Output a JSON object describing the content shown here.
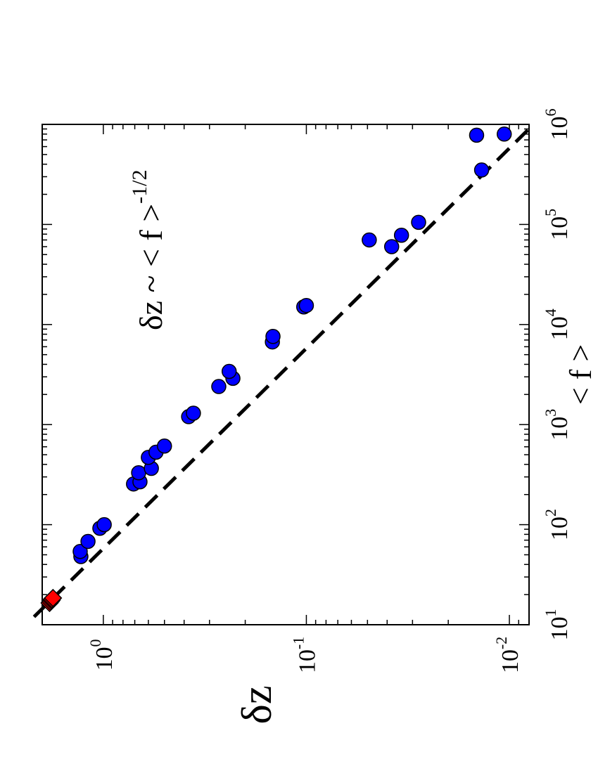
{
  "chart_data": {
    "type": "scatter",
    "orientation": "rotated-90-clockwise",
    "xlabel": "< f >",
    "ylabel": "δz",
    "annotation": {
      "text": "δz ~ < f >",
      "exponent": "-1/2"
    },
    "x_scale": "log",
    "y_scale": "log",
    "xlim": [
      10,
      1000000
    ],
    "ylim": [
      0.008,
      2.0
    ],
    "x_ticks": [
      {
        "base": "10",
        "exp": "1",
        "value": 10
      },
      {
        "base": "10",
        "exp": "2",
        "value": 100
      },
      {
        "base": "10",
        "exp": "3",
        "value": 1000
      },
      {
        "base": "10",
        "exp": "4",
        "value": 10000
      },
      {
        "base": "10",
        "exp": "5",
        "value": 100000
      },
      {
        "base": "10",
        "exp": "6",
        "value": 1000000
      }
    ],
    "y_ticks": [
      {
        "base": "10",
        "exp": "0",
        "value": 1
      },
      {
        "base": "10",
        "exp": "-1",
        "value": 0.1
      },
      {
        "base": "10",
        "exp": "-2",
        "value": 0.01
      }
    ],
    "fit_line": {
      "style": "dashed",
      "color": "#000000",
      "exponent": -0.5,
      "coefficient": 7.6,
      "x_range": [
        12,
        900000
      ]
    },
    "series": [
      {
        "marker": "square",
        "color": "#ff0000",
        "points": [
          {
            "x": 16.5,
            "y": 1.84
          },
          {
            "x": 17.0,
            "y": 1.82
          },
          {
            "x": 17.5,
            "y": 1.8
          },
          {
            "x": 18.0,
            "y": 1.79
          },
          {
            "x": 18.5,
            "y": 1.77
          }
        ]
      },
      {
        "marker": "circle",
        "color": "#0000ff",
        "points": [
          {
            "x": 48,
            "y": 1.29
          },
          {
            "x": 54,
            "y": 1.3
          },
          {
            "x": 68,
            "y": 1.19
          },
          {
            "x": 92,
            "y": 1.04
          },
          {
            "x": 100,
            "y": 0.99
          },
          {
            "x": 255,
            "y": 0.71
          },
          {
            "x": 268,
            "y": 0.66
          },
          {
            "x": 330,
            "y": 0.67
          },
          {
            "x": 365,
            "y": 0.58
          },
          {
            "x": 470,
            "y": 0.6
          },
          {
            "x": 530,
            "y": 0.55
          },
          {
            "x": 610,
            "y": 0.5
          },
          {
            "x": 1200,
            "y": 0.38
          },
          {
            "x": 1300,
            "y": 0.36
          },
          {
            "x": 2400,
            "y": 0.27
          },
          {
            "x": 2900,
            "y": 0.23
          },
          {
            "x": 3400,
            "y": 0.24
          },
          {
            "x": 6700,
            "y": 0.147
          },
          {
            "x": 7600,
            "y": 0.146
          },
          {
            "x": 15000,
            "y": 0.103
          },
          {
            "x": 15500,
            "y": 0.1
          },
          {
            "x": 60000,
            "y": 0.038
          },
          {
            "x": 70000,
            "y": 0.049
          },
          {
            "x": 78000,
            "y": 0.034
          },
          {
            "x": 105000,
            "y": 0.028
          },
          {
            "x": 350000,
            "y": 0.0137
          },
          {
            "x": 780000,
            "y": 0.0145
          },
          {
            "x": 800000,
            "y": 0.0106
          }
        ]
      }
    ]
  }
}
